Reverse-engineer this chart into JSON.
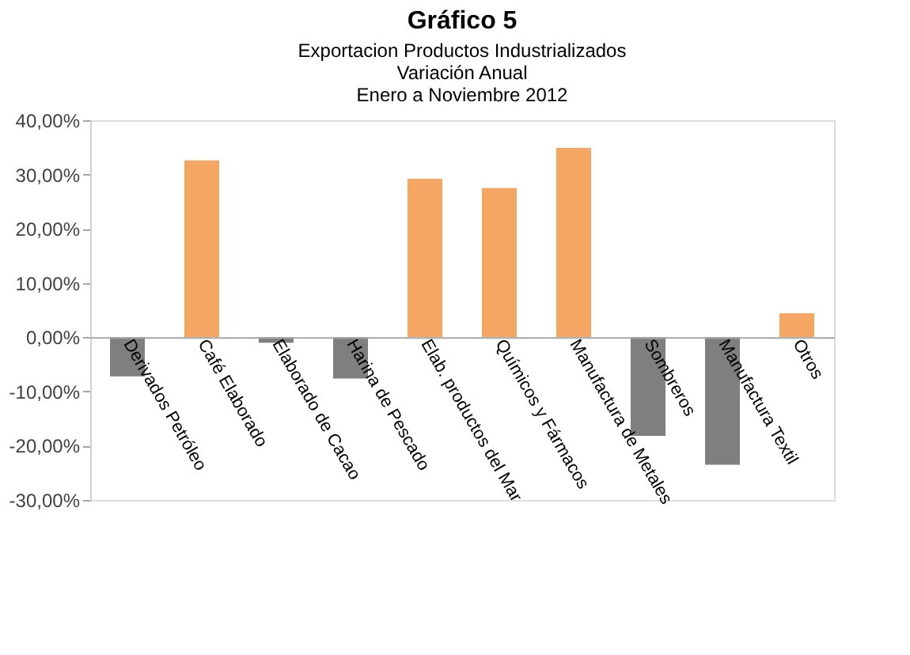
{
  "chart_data": {
    "type": "bar",
    "title": "Gráfico 5",
    "subtitle": "Exportacion Productos Industrializados\nVariación Anual\nEnero a Noviembre 2012",
    "categories": [
      "Derivados Petróleo",
      "Café Elaborado",
      "Elaborado de Cacao",
      "Harina de Pescado",
      "Elab. productos del Mar",
      "Químicos y Fármacos",
      "Manufactura de Metales",
      "Sombreros",
      "Manufactura Textil",
      "Otros"
    ],
    "values": [
      -7.2,
      32.6,
      -1.0,
      -7.6,
      29.2,
      27.5,
      34.9,
      -18.2,
      -23.5,
      4.4
    ],
    "colors": [
      "#7f7f7f",
      "#f6a663",
      "#7f7f7f",
      "#7f7f7f",
      "#f6a663",
      "#f6a663",
      "#f6a663",
      "#7f7f7f",
      "#7f7f7f",
      "#f6a663"
    ],
    "ylim": [
      -30,
      40
    ],
    "yticks": [
      {
        "value": -30,
        "label": "-30,00%"
      },
      {
        "value": -20,
        "label": "-20,00%"
      },
      {
        "value": -10,
        "label": "-10,00%"
      },
      {
        "value": 0,
        "label": "0,00%"
      },
      {
        "value": 10,
        "label": "10,00%"
      },
      {
        "value": 20,
        "label": "20,00%"
      },
      {
        "value": 30,
        "label": "30,00%"
      },
      {
        "value": 40,
        "label": "40,00%"
      }
    ],
    "grid": false
  }
}
